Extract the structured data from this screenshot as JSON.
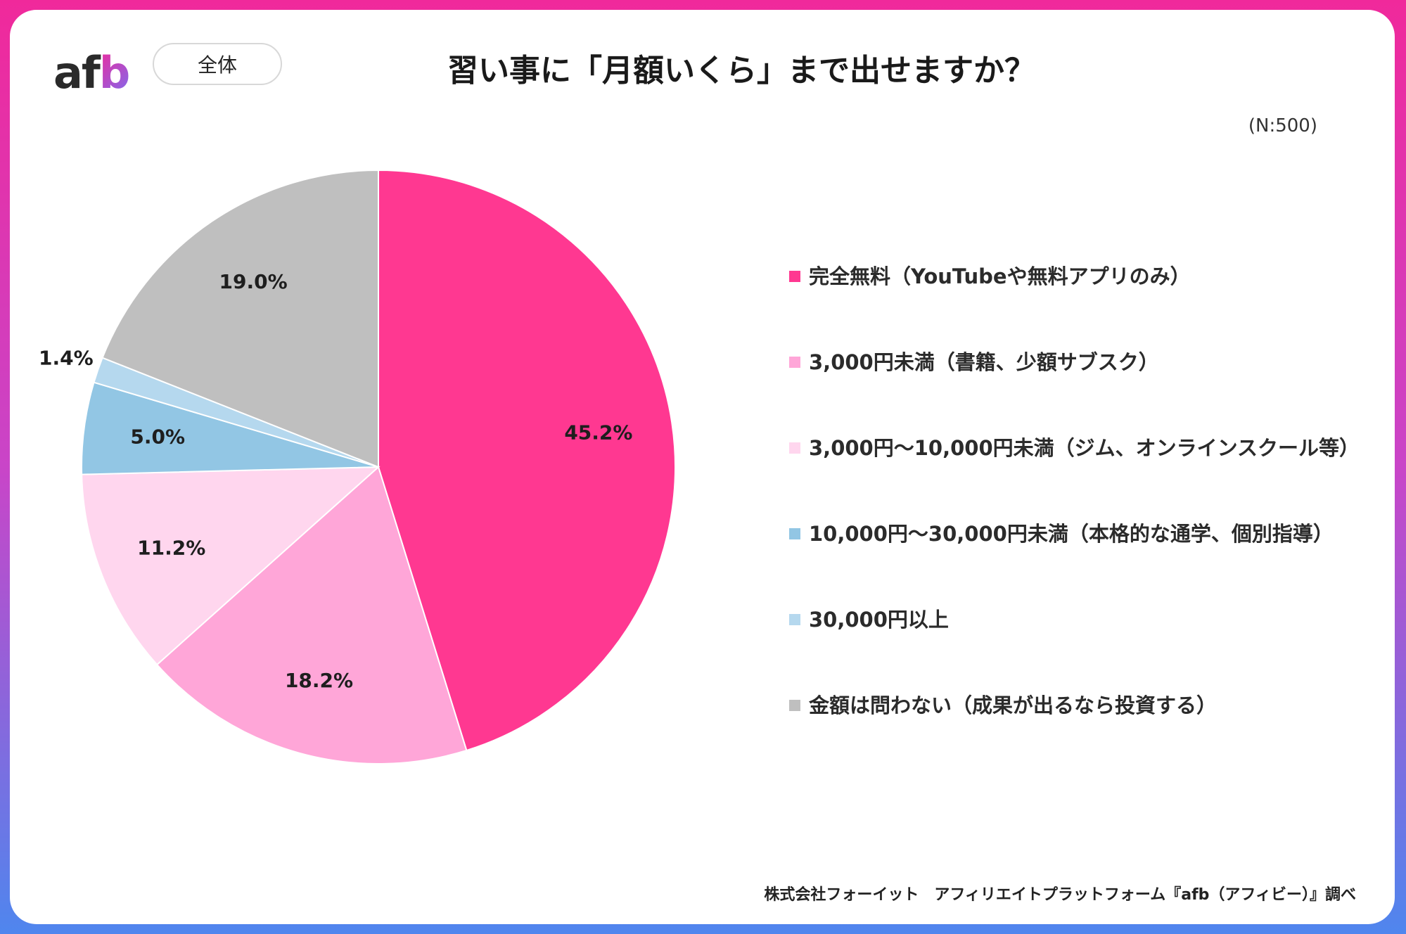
{
  "header": {
    "logo_text": "afb",
    "filter_pill": "全体",
    "title": "習い事に「月額いくら」まで出せますか？",
    "sample_size": "(N:500)"
  },
  "footer": {
    "credit": "株式会社フォーイット　アフィリエイトプラットフォーム『afb（アフィビー）』調べ"
  },
  "chart_data": {
    "type": "pie",
    "title": "習い事に「月額いくら」まで出せますか？",
    "slices": [
      {
        "label": "完全無料（YouTubeや無料アプリのみ）",
        "value": 45.2,
        "display": "45.2%",
        "color": "#ff3891"
      },
      {
        "label": "3,000円未満（書籍、少額サブスク）",
        "value": 18.2,
        "display": "18.2%",
        "color": "#ffa6d8"
      },
      {
        "label": "3,000円～10,000円未満（ジム、オンラインスクール等）",
        "value": 11.2,
        "display": "11.2%",
        "color": "#ffd6ee"
      },
      {
        "label": "10,000円～30,000円未満（本格的な通学、個別指導）",
        "value": 5.0,
        "display": "5.0%",
        "color": "#92c6e4"
      },
      {
        "label": "30,000円以上",
        "value": 1.4,
        "display": "1.4%",
        "color": "#b5d8ee"
      },
      {
        "label": "金額は問わない（成果が出るなら投資する）",
        "value": 19.0,
        "display": "19.0%",
        "color": "#bfbfbf"
      }
    ],
    "start": "12 o'clock",
    "direction": "clockwise",
    "legend_position": "right"
  }
}
